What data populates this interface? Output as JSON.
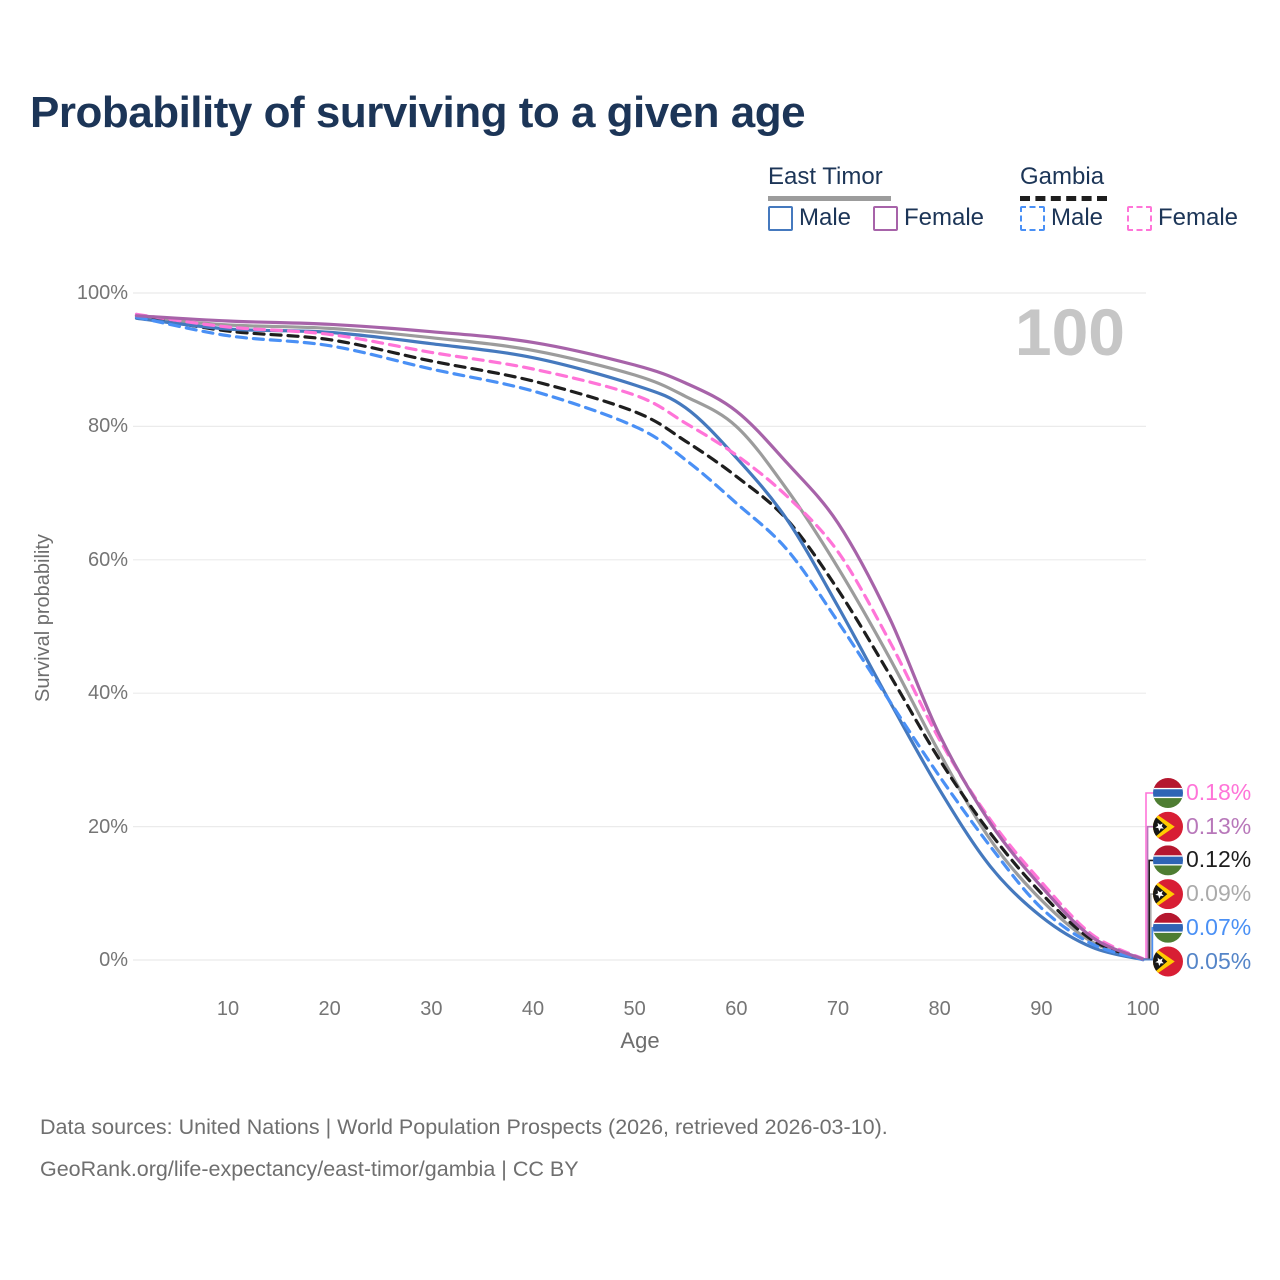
{
  "title": "Probability of surviving to a given age",
  "legend": {
    "groups": [
      {
        "label": "East Timor",
        "line_style": "solid",
        "line_color": "#9c9c9c",
        "items": [
          {
            "label": "Male",
            "color": "#4579be",
            "dashed": false
          },
          {
            "label": "Female",
            "color": "#a763a9",
            "dashed": false
          }
        ]
      },
      {
        "label": "Gambia",
        "line_style": "dashed",
        "line_color": "#1e1e1e",
        "items": [
          {
            "label": "Male",
            "color": "#4a90f5",
            "dashed": true
          },
          {
            "label": "Female",
            "color": "#ff74d8",
            "dashed": true
          }
        ]
      }
    ]
  },
  "chart_data": {
    "type": "line",
    "title": "Probability of surviving to a given age",
    "xlabel": "Age",
    "ylabel": "Survival probability",
    "xlim": [
      1,
      100
    ],
    "ylim": [
      0,
      100
    ],
    "grid": true,
    "legend_position": "top-right",
    "annotation": "100",
    "x_ticks": [
      10,
      20,
      30,
      40,
      50,
      60,
      70,
      80,
      90,
      100
    ],
    "y_ticks": [
      {
        "value": 100,
        "label": "100%"
      },
      {
        "value": 80,
        "label": "80%"
      },
      {
        "value": 60,
        "label": "60%"
      },
      {
        "value": 40,
        "label": "40%"
      },
      {
        "value": 20,
        "label": "20%"
      },
      {
        "value": 0,
        "label": "0%"
      }
    ],
    "ages": [
      1,
      10,
      20,
      30,
      40,
      50,
      55,
      60,
      65,
      70,
      75,
      80,
      85,
      90,
      95,
      100
    ],
    "series": [
      {
        "name": "East Timor Male",
        "country": "East Timor",
        "sex": "Male",
        "color": "#4579be",
        "dashed": false,
        "values": [
          96.2,
          94.6,
          94.1,
          92.4,
          90.3,
          86.2,
          82.8,
          75.3,
          66.0,
          53.0,
          39.0,
          25.5,
          14.0,
          6.5,
          1.9,
          0.05
        ]
      },
      {
        "name": "East Timor Female",
        "country": "East Timor",
        "sex": "Female",
        "color": "#a763a9",
        "dashed": false,
        "values": [
          96.6,
          95.8,
          95.3,
          94.2,
          92.6,
          89.2,
          86.5,
          82.3,
          74.5,
          65.5,
          51.5,
          33.7,
          20.5,
          11.0,
          3.4,
          0.13
        ]
      },
      {
        "name": "East Timor Both",
        "country": "East Timor",
        "sex": "Both",
        "color": "#9c9c9c",
        "dashed": false,
        "values": [
          96.4,
          95.2,
          94.7,
          93.3,
          91.4,
          87.7,
          84.5,
          80.0,
          70.5,
          58.8,
          45.5,
          31.0,
          18.0,
          9.0,
          2.7,
          0.09
        ]
      },
      {
        "name": "Gambia Male",
        "country": "Gambia",
        "sex": "Male",
        "color": "#4a90f5",
        "dashed": true,
        "values": [
          96.4,
          93.6,
          92.1,
          88.6,
          85.3,
          80.0,
          75.0,
          68.5,
          61.5,
          50.7,
          39.0,
          27.5,
          17.0,
          7.8,
          2.4,
          0.07
        ]
      },
      {
        "name": "Gambia Female",
        "country": "Gambia",
        "sex": "Female",
        "color": "#ff74d8",
        "dashed": true,
        "values": [
          96.8,
          94.9,
          93.8,
          91.1,
          88.6,
          84.7,
          80.5,
          75.7,
          69.5,
          61.2,
          48.0,
          33.0,
          21.0,
          11.7,
          3.8,
          0.18
        ]
      },
      {
        "name": "Gambia Both",
        "country": "Gambia",
        "sex": "Both",
        "color": "#1e1e1e",
        "dashed": true,
        "values": [
          96.6,
          94.3,
          93.0,
          89.8,
          86.8,
          82.2,
          77.8,
          72.5,
          66.0,
          55.5,
          43.0,
          30.0,
          19.0,
          10.0,
          3.0,
          0.12
        ]
      }
    ],
    "end_labels": [
      {
        "text": "0.18%",
        "series": "Gambia Female",
        "color": "#ff74d8",
        "flag": "gambia"
      },
      {
        "text": "0.13%",
        "series": "East Timor Female",
        "color": "#b878ba",
        "flag": "east-timor"
      },
      {
        "text": "0.12%",
        "series": "Gambia Both",
        "color": "#1e1e1e",
        "flag": "gambia"
      },
      {
        "text": "0.09%",
        "series": "East Timor Both",
        "color": "#ababab",
        "flag": "east-timor"
      },
      {
        "text": "0.07%",
        "series": "Gambia Male",
        "color": "#4a90f5",
        "flag": "gambia"
      },
      {
        "text": "0.05%",
        "series": "East Timor Male",
        "color": "#5585c8",
        "flag": "east-timor"
      }
    ]
  },
  "footer": {
    "line1": "Data sources: United Nations | World Population Prospects (2026, retrieved 2026-03-10).",
    "line2": "GeoRank.org/life-expectancy/east-timor/gambia | CC BY"
  }
}
